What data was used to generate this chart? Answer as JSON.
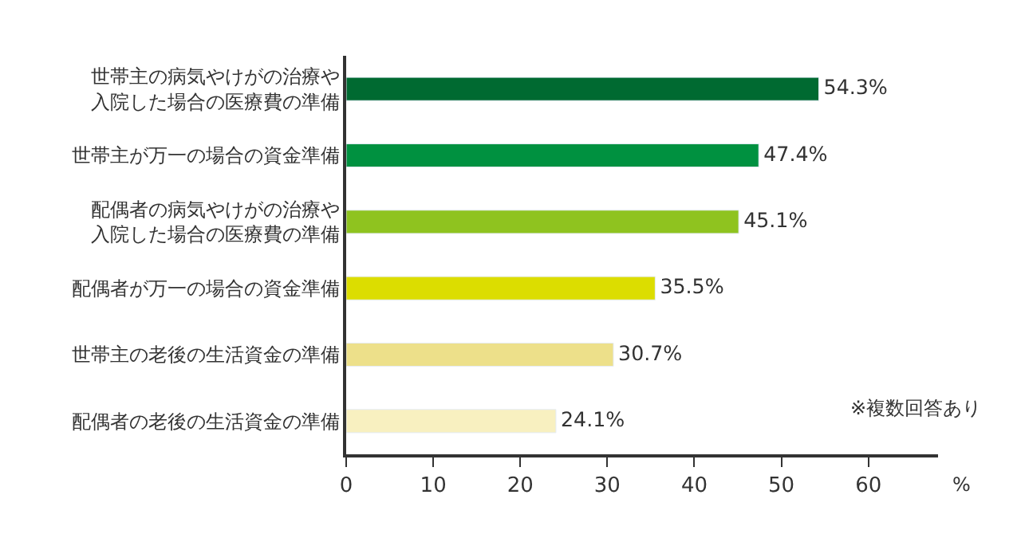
{
  "chart_data": {
    "type": "bar",
    "orientation": "horizontal",
    "categories": [
      "世帯主の病気やけがの治療や入院した場合の医療費の準備",
      "世帯主が万一の場合の資金準備",
      "配偶者の病気やけがの治療や入院した場合の医療費の準備",
      "配偶者が万一の場合の資金準備",
      "世帯主の老後の生活資金の準備",
      "配偶者の老後の生活資金の準備"
    ],
    "values": [
      54.3,
      47.4,
      45.1,
      35.5,
      30.7,
      24.1
    ],
    "colors": [
      "#006a31",
      "#009140",
      "#8fc31f",
      "#dcdd00",
      "#ede08a",
      "#f8f0c0"
    ],
    "value_labels": [
      "54.3%",
      "47.4%",
      "45.1%",
      "35.5%",
      "30.7%",
      "24.1%"
    ],
    "xlim": [
      0,
      68
    ],
    "xticks": [
      0,
      10,
      20,
      30,
      40,
      50,
      60
    ],
    "xlabel": "%",
    "annotations": [
      "※複数回答あり"
    ],
    "legend": false
  }
}
